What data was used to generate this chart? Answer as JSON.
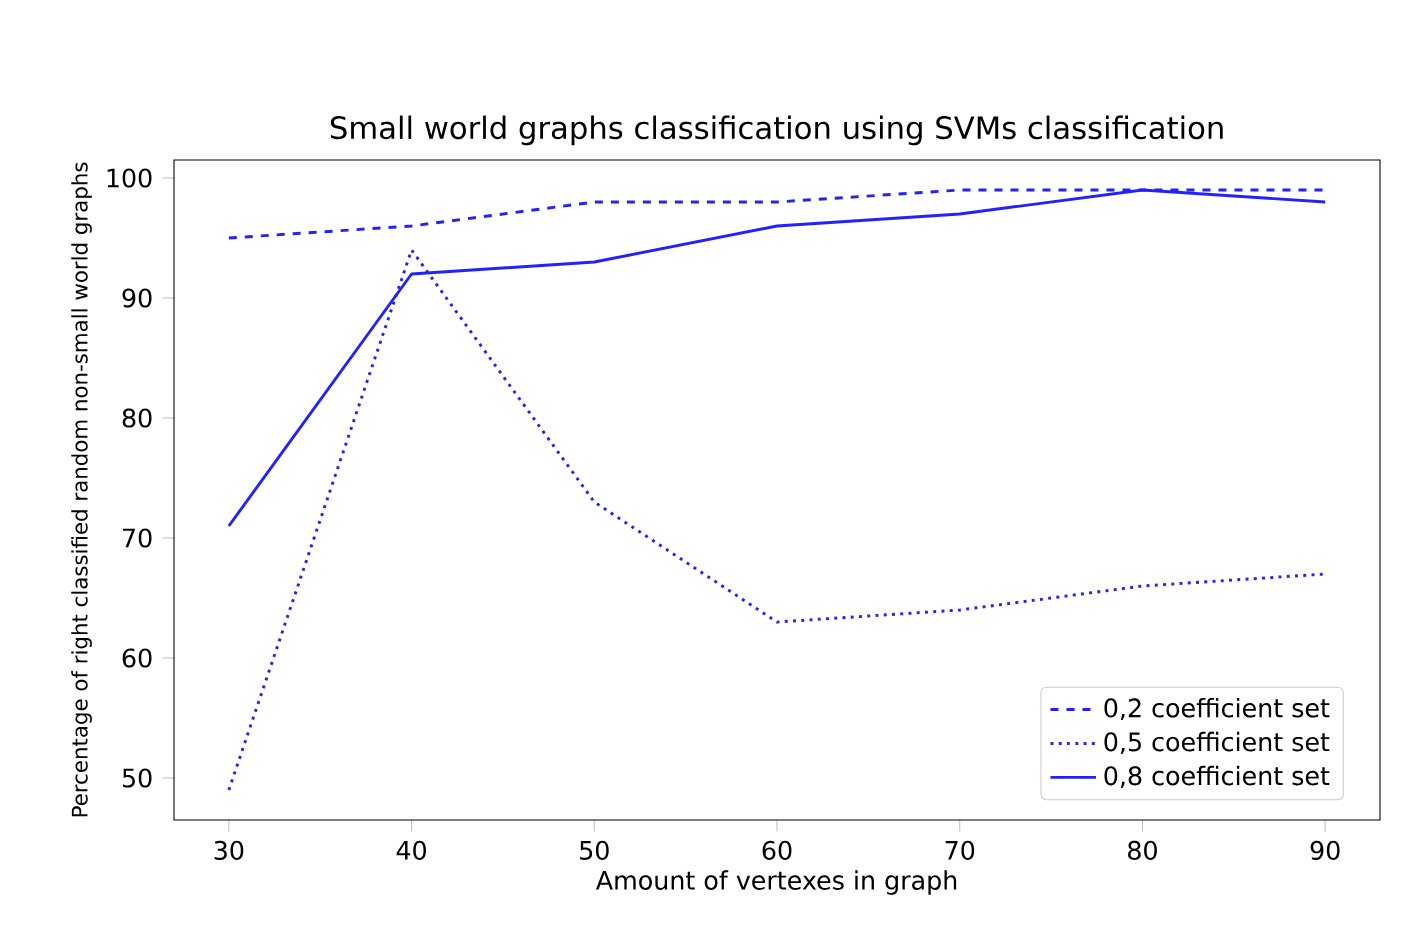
{
  "chart_data": {
    "type": "line",
    "title": "Small world graphs classification using SVMs classification",
    "xlabel": "Amount of vertexes in graph",
    "ylabel": "Percentage of right classified random non-small world graphs",
    "x": [
      30,
      40,
      50,
      60,
      70,
      80,
      90
    ],
    "series": [
      {
        "name": "0,2 coefficient set",
        "color": "#2222ff",
        "line_style": "dashed",
        "values": [
          95,
          96,
          98,
          98,
          99,
          99,
          99
        ]
      },
      {
        "name": "0,5 coefficient set",
        "color": "#2222ff",
        "line_style": "dotted",
        "values": [
          49,
          94,
          73,
          63,
          64,
          66,
          67
        ]
      },
      {
        "name": "0,8 coefficient set",
        "color": "#2222ff",
        "line_style": "solid",
        "values": [
          71,
          92,
          93,
          96,
          97,
          99,
          98
        ]
      }
    ],
    "xlim": [
      27,
      93
    ],
    "ylim": [
      46.5,
      101.5
    ],
    "xticks": [
      30,
      40,
      50,
      60,
      70,
      80,
      90
    ],
    "yticks": [
      50,
      60,
      70,
      80,
      90,
      100
    ],
    "legend": "bottom right",
    "grid": false,
    "marker": "none"
  }
}
